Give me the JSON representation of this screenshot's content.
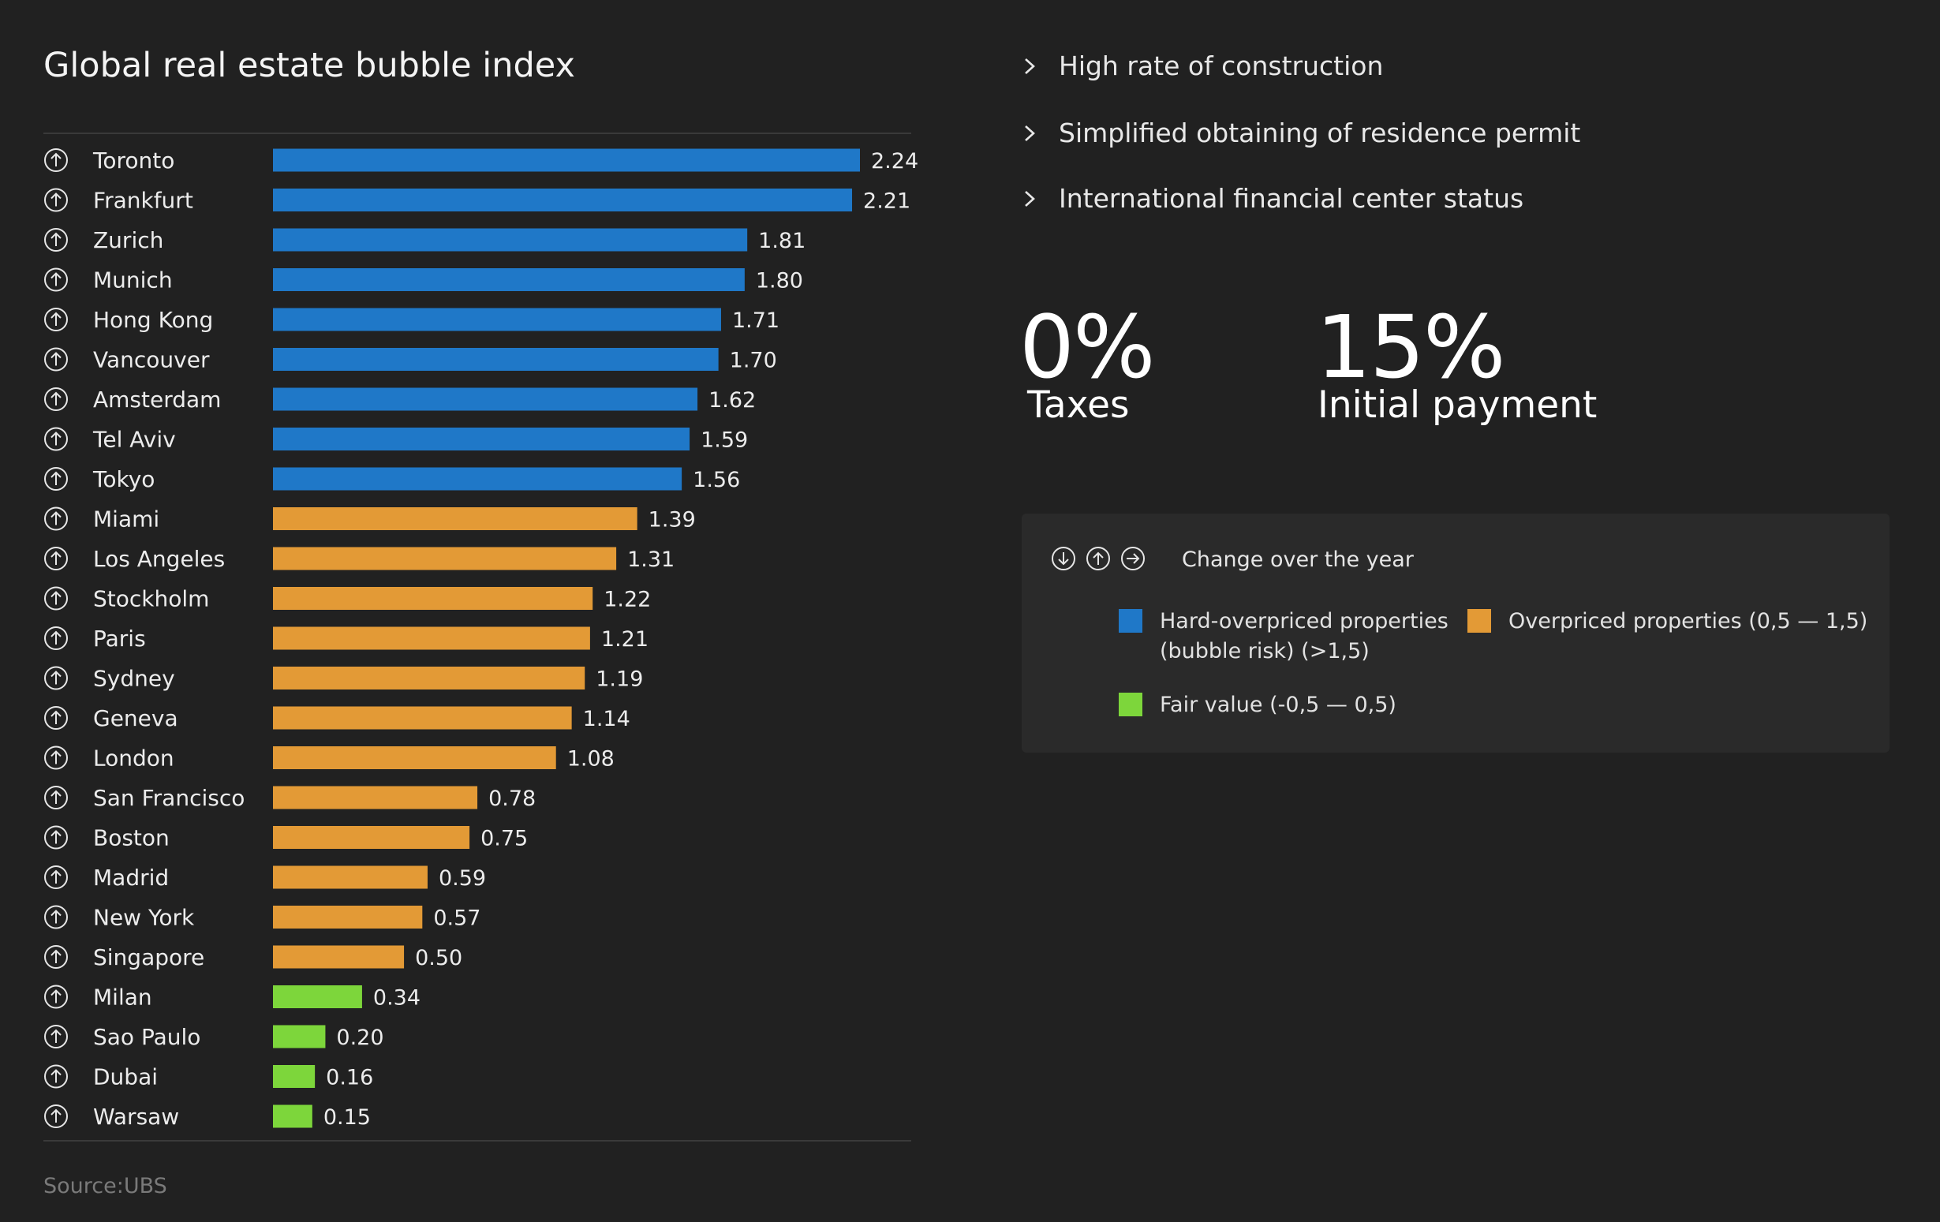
{
  "title": "Global real estate bubble index",
  "source": "Source:UBS",
  "colors": {
    "hard_overpriced": "#1f78c8",
    "overpriced": "#e39a36",
    "fair_value": "#7dd63b",
    "background": "#212121",
    "panel": "#2a2a2a"
  },
  "row_icon": "arrow-up-circle-icon",
  "chart_data": {
    "type": "bar",
    "orientation": "horizontal",
    "title": "Global real estate bubble index",
    "categories": [
      "Toronto",
      "Frankfurt",
      "Zurich",
      "Munich",
      "Hong Kong",
      "Vancouver",
      "Amsterdam",
      "Tel Aviv",
      "Tokyo",
      "Miami",
      "Los Angeles",
      "Stockholm",
      "Paris",
      "Sydney",
      "Geneva",
      "London",
      "San Francisco",
      "Boston",
      "Madrid",
      "New York",
      "Singapore",
      "Milan",
      "Sao Paulo",
      "Dubai",
      "Warsaw"
    ],
    "values": [
      2.24,
      2.21,
      1.81,
      1.8,
      1.71,
      1.7,
      1.62,
      1.59,
      1.56,
      1.39,
      1.31,
      1.22,
      1.21,
      1.19,
      1.14,
      1.08,
      0.78,
      0.75,
      0.59,
      0.57,
      0.5,
      0.34,
      0.2,
      0.16,
      0.15
    ],
    "labels": [
      "2.24",
      "2.21",
      "1.81",
      "1.80",
      "1.71",
      "1.70",
      "1.62",
      "1.59",
      "1.56",
      "1.39",
      "1.31",
      "1.22",
      "1.21",
      "1.19",
      "1.14",
      "1.08",
      "0.78",
      "0.75",
      "0.59",
      "0.57",
      "0.50",
      "0.34",
      "0.20",
      "0.16",
      "0.15"
    ],
    "categories_class": [
      "hard",
      "hard",
      "hard",
      "hard",
      "hard",
      "hard",
      "hard",
      "hard",
      "hard",
      "over",
      "over",
      "over",
      "over",
      "over",
      "over",
      "over",
      "over",
      "over",
      "over",
      "over",
      "over",
      "fair",
      "fair",
      "fair",
      "fair"
    ],
    "change": [
      "up",
      "up",
      "up",
      "up",
      "up",
      "up",
      "up",
      "up",
      "up",
      "up",
      "up",
      "up",
      "up",
      "up",
      "up",
      "up",
      "up",
      "up",
      "up",
      "up",
      "up",
      "up",
      "up",
      "up",
      "up"
    ],
    "xlim": [
      0,
      2.24
    ],
    "grid": false,
    "legend": "right panel"
  },
  "highlights": [
    "High rate of construction",
    "Simplified obtaining of residence permit",
    "International financial center status"
  ],
  "stats": [
    {
      "value": "0%",
      "label": "Taxes"
    },
    {
      "value": "15%",
      "label": "Initial payment"
    }
  ],
  "legend": {
    "title": "Change over the year",
    "icons": [
      "arrow-down-circle-icon",
      "arrow-up-circle-icon",
      "arrow-right-circle-icon"
    ],
    "items": [
      {
        "key": "hard",
        "line1": "Hard-overpriced properties",
        "line2": "(bubble risk) (>1,5)"
      },
      {
        "key": "over",
        "line1": "Overpriced properties (0,5 — 1,5)",
        "line2": ""
      },
      {
        "key": "fair",
        "line1": "Fair value (-0,5 — 0,5)",
        "line2": ""
      }
    ]
  }
}
